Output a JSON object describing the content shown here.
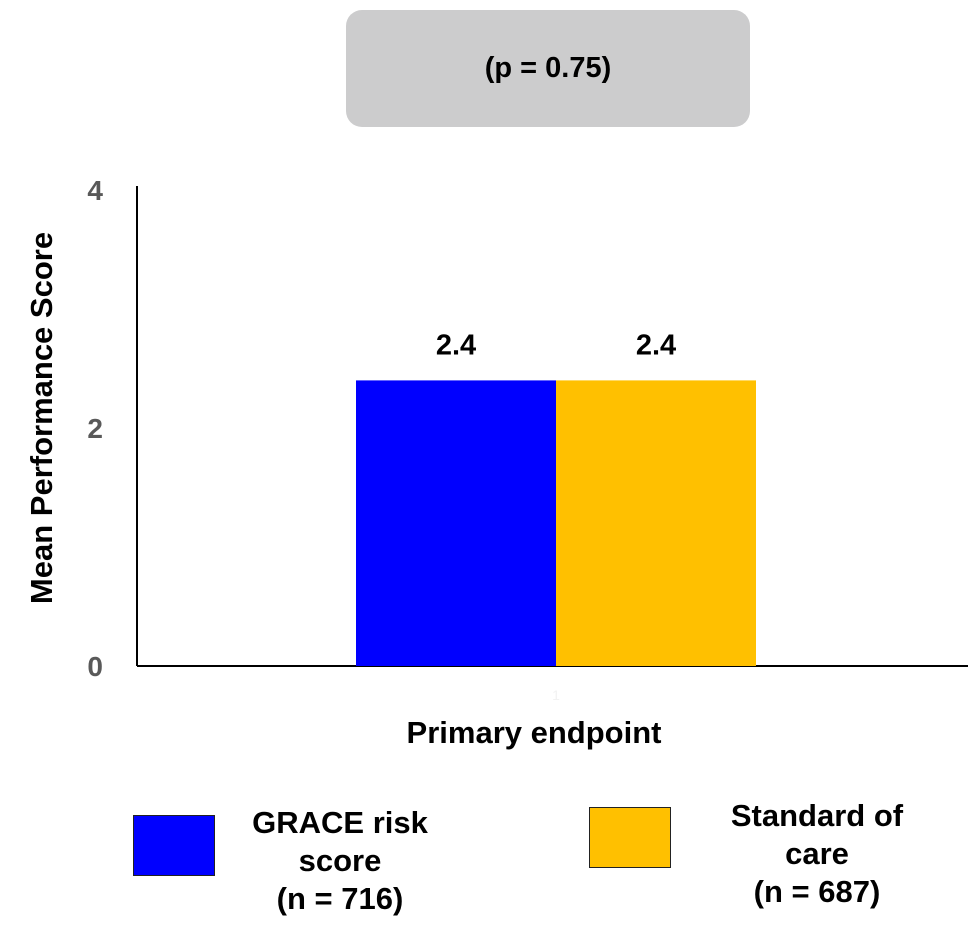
{
  "annotation": {
    "text": "(p = 0.75)"
  },
  "chart_data": {
    "type": "bar",
    "categories": [
      "1"
    ],
    "xlabel": "Primary endpoint",
    "ylabel": "Mean Performance Score",
    "ylim": [
      0,
      4
    ],
    "yticks": [
      0,
      2,
      4
    ],
    "grid": false,
    "legend_position": "bottom",
    "series": [
      {
        "name": "GRACE risk score (n = 716)",
        "values": [
          2.4
        ],
        "data_labels": [
          "2.4"
        ],
        "color": "#0000ff",
        "legend_lines": [
          "GRACE risk",
          "score",
          "(n = 716)"
        ]
      },
      {
        "name": "Standard of care (n = 687)",
        "values": [
          2.4
        ],
        "data_labels": [
          "2.4"
        ],
        "color": "#ffc000",
        "legend_lines": [
          "Standard of",
          "care",
          "(n = 687)"
        ]
      }
    ]
  }
}
